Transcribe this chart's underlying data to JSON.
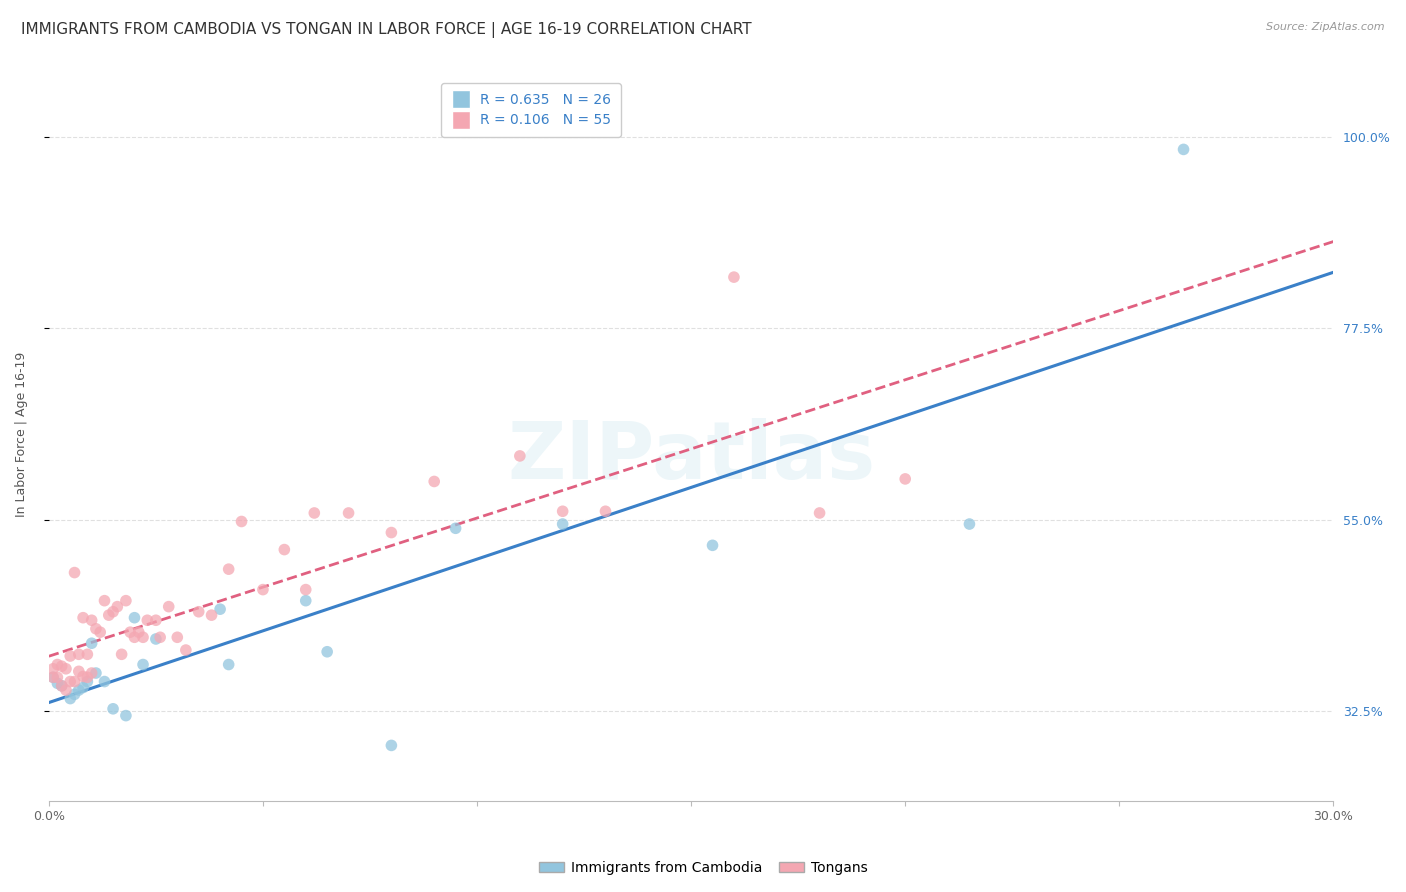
{
  "title": "IMMIGRANTS FROM CAMBODIA VS TONGAN IN LABOR FORCE | AGE 16-19 CORRELATION CHART",
  "source": "Source: ZipAtlas.com",
  "ylabel": "In Labor Force | Age 16-19",
  "xlim": [
    0.0,
    0.3
  ],
  "ylim": [
    0.22,
    1.08
  ],
  "xticks": [
    0.0,
    0.05,
    0.1,
    0.15,
    0.2,
    0.25,
    0.3
  ],
  "yticks": [
    0.325,
    0.55,
    0.775,
    1.0
  ],
  "yticklabels": [
    "32.5%",
    "55.0%",
    "77.5%",
    "100.0%"
  ],
  "cambodia_R": 0.635,
  "cambodia_N": 26,
  "tongan_R": 0.106,
  "tongan_N": 55,
  "cambodia_color": "#92C5DE",
  "tongan_color": "#F4A7B2",
  "cambodia_line_color": "#3A80C8",
  "tongan_line_color": "#E06080",
  "background_color": "#FFFFFF",
  "grid_color": "#DDDDDD",
  "watermark": "ZIPatlas",
  "cambodia_x": [
    0.001,
    0.002,
    0.003,
    0.005,
    0.006,
    0.007,
    0.008,
    0.009,
    0.01,
    0.011,
    0.013,
    0.015,
    0.018,
    0.02,
    0.022,
    0.025,
    0.04,
    0.042,
    0.06,
    0.065,
    0.08,
    0.095,
    0.12,
    0.155,
    0.215,
    0.265
  ],
  "cambodia_y": [
    0.365,
    0.358,
    0.355,
    0.34,
    0.345,
    0.35,
    0.353,
    0.36,
    0.405,
    0.37,
    0.36,
    0.328,
    0.32,
    0.435,
    0.38,
    0.41,
    0.445,
    0.38,
    0.455,
    0.395,
    0.285,
    0.54,
    0.545,
    0.52,
    0.545,
    0.985
  ],
  "tongan_x": [
    0.001,
    0.001,
    0.002,
    0.002,
    0.003,
    0.003,
    0.004,
    0.004,
    0.005,
    0.005,
    0.006,
    0.006,
    0.007,
    0.007,
    0.008,
    0.008,
    0.009,
    0.009,
    0.01,
    0.01,
    0.011,
    0.012,
    0.013,
    0.014,
    0.015,
    0.016,
    0.017,
    0.018,
    0.019,
    0.02,
    0.021,
    0.022,
    0.023,
    0.025,
    0.026,
    0.028,
    0.03,
    0.032,
    0.035,
    0.038,
    0.042,
    0.045,
    0.05,
    0.055,
    0.06,
    0.062,
    0.07,
    0.08,
    0.09,
    0.11,
    0.12,
    0.13,
    0.16,
    0.18,
    0.2
  ],
  "tongan_y": [
    0.365,
    0.375,
    0.365,
    0.38,
    0.355,
    0.378,
    0.35,
    0.375,
    0.36,
    0.39,
    0.36,
    0.488,
    0.372,
    0.392,
    0.366,
    0.435,
    0.365,
    0.392,
    0.37,
    0.432,
    0.422,
    0.418,
    0.455,
    0.438,
    0.442,
    0.448,
    0.392,
    0.455,
    0.418,
    0.412,
    0.418,
    0.412,
    0.432,
    0.432,
    0.412,
    0.448,
    0.412,
    0.397,
    0.442,
    0.438,
    0.492,
    0.548,
    0.468,
    0.515,
    0.468,
    0.558,
    0.558,
    0.535,
    0.595,
    0.625,
    0.56,
    0.56,
    0.835,
    0.558,
    0.598
  ],
  "title_fontsize": 11,
  "axis_label_fontsize": 9,
  "tick_fontsize": 9,
  "legend_fontsize": 10
}
